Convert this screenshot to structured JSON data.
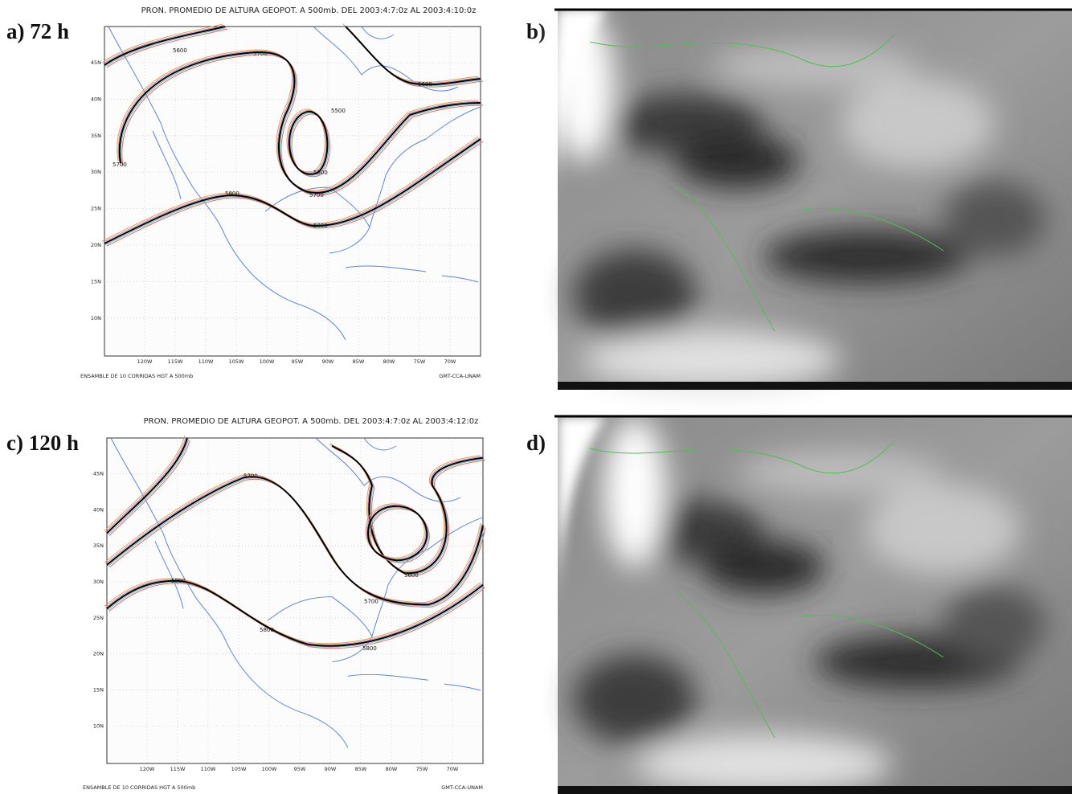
{
  "panels": [
    {
      "label": "a) 72 h",
      "title": "PRON. PROMEDIO DE ALTURA GEOPOT. A 500mb. DEL 2003:4:7:0z AL 2003:4:10:0z",
      "footer_left": "ENSAMBLE DE 10 CORRIDAS HGT A 500mb",
      "footer_right": "GMT-CCA-UNAM",
      "contour_labels": [
        "5600",
        "5700",
        "5600",
        "5500",
        "5700",
        "5700",
        "5800",
        "5800",
        "5800"
      ]
    },
    {
      "label": "c) 120 h",
      "title": "PRON. PROMEDIO DE ALTURA GEOPOT. A 500mb. DEL 2003:4:7:0z AL 2003:4:12:0z",
      "footer_left": "ENSAMBLE DE 10 CORRIDAS HGT A 500mb",
      "footer_right": "GMT-CCA-UNAM",
      "contour_labels": [
        "5700",
        "5600",
        "5700",
        "5800",
        "5800",
        "5800"
      ]
    }
  ],
  "lat_labels": [
    "45N",
    "40N",
    "35N",
    "30N",
    "25N",
    "20N",
    "15N",
    "10N"
  ],
  "lon_labels": [
    "120W",
    "115W",
    "110W",
    "105W",
    "100W",
    "95W",
    "90W",
    "85W",
    "80W",
    "75W",
    "70W"
  ],
  "images": [
    {
      "label": "b)"
    },
    {
      "label": "d)"
    }
  ]
}
